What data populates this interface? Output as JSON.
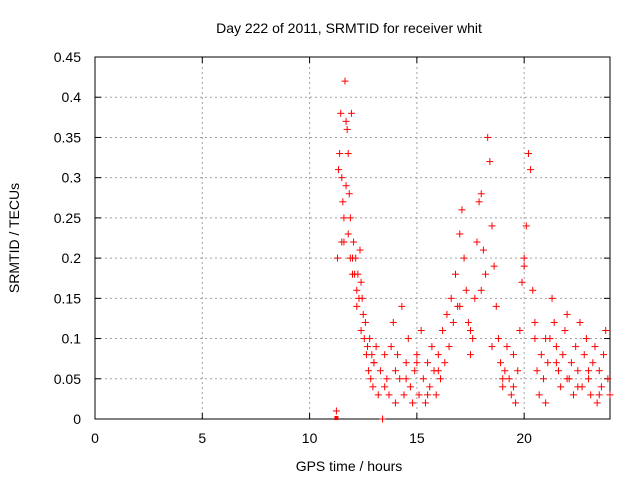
{
  "chart_data": {
    "type": "scatter",
    "title": "Day 222 of 2011, SRMTID for receiver whit",
    "xlabel": "GPS time / hours",
    "ylabel": "SRMTID / TECUs",
    "xlim": [
      0,
      24
    ],
    "ylim": [
      0,
      0.45
    ],
    "xticks": [
      0,
      5,
      10,
      15,
      20
    ],
    "xtick_labels": [
      "0",
      "5",
      "10",
      "15",
      "20"
    ],
    "yticks": [
      0,
      0.05,
      0.1,
      0.15,
      0.2,
      0.25,
      0.3,
      0.35,
      0.4,
      0.45
    ],
    "ytick_labels": [
      "0",
      "0.05",
      "0.1",
      "0.15",
      "0.2",
      "0.25",
      "0.3",
      "0.35",
      "0.4",
      "0.45"
    ],
    "grid": true,
    "marker": "+",
    "color": "#ff0000",
    "series": [
      {
        "name": "SRMTID",
        "x": [
          11.25,
          11.3,
          11.35,
          11.4,
          11.45,
          11.5,
          11.55,
          11.6,
          11.65,
          11.7,
          11.75,
          11.8,
          11.85,
          11.9,
          11.95,
          12.0,
          12.05,
          12.1,
          12.15,
          12.2,
          12.25,
          12.3,
          12.35,
          12.4,
          12.45,
          12.5,
          12.55,
          12.6,
          12.65,
          12.7,
          12.75,
          12.8,
          12.85,
          12.9,
          12.95,
          13.0,
          13.1,
          13.2,
          13.3,
          13.4,
          13.5,
          13.6,
          13.7,
          13.8,
          13.9,
          14.0,
          14.1,
          14.2,
          14.3,
          14.4,
          14.5,
          14.6,
          14.7,
          14.8,
          14.9,
          15.0,
          15.1,
          15.2,
          15.3,
          15.4,
          15.5,
          15.6,
          15.7,
          15.8,
          15.9,
          16.0,
          16.1,
          16.2,
          16.3,
          16.4,
          16.5,
          16.6,
          16.7,
          16.8,
          16.9,
          17.0,
          17.1,
          17.2,
          17.3,
          17.4,
          17.5,
          17.6,
          17.7,
          17.8,
          17.9,
          18.0,
          18.1,
          18.2,
          18.3,
          18.4,
          18.5,
          18.6,
          18.7,
          18.8,
          18.9,
          19.0,
          19.1,
          19.2,
          19.3,
          19.4,
          19.5,
          19.6,
          19.7,
          19.8,
          19.9,
          20.0,
          20.1,
          20.2,
          20.3,
          20.4,
          20.5,
          20.6,
          20.7,
          20.8,
          20.9,
          21.0,
          21.1,
          21.2,
          21.3,
          21.4,
          21.5,
          21.6,
          21.7,
          21.8,
          21.9,
          22.0,
          22.1,
          22.2,
          22.3,
          22.4,
          22.5,
          22.6,
          22.7,
          22.8,
          22.9,
          23.0,
          23.1,
          23.2,
          23.3,
          23.4,
          23.5,
          23.6,
          23.7,
          23.8,
          23.9,
          24.0,
          11.5,
          11.6,
          11.7,
          11.8,
          11.9,
          12.0,
          12.2,
          12.4,
          13.0,
          13.5,
          14.0,
          14.5,
          15.0,
          15.5,
          16.0,
          17.0,
          17.5,
          18.0,
          18.5,
          19.0,
          19.5,
          20.0,
          20.5,
          21.0,
          21.5,
          22.0,
          22.5,
          23.0,
          23.5
        ],
        "y": [
          0.01,
          0.2,
          0.31,
          0.33,
          0.38,
          0.3,
          0.27,
          0.22,
          0.42,
          0.37,
          0.36,
          0.33,
          0.28,
          0.25,
          0.38,
          0.2,
          0.22,
          0.18,
          0.2,
          0.16,
          0.18,
          0.15,
          0.21,
          0.17,
          0.15,
          0.13,
          0.1,
          0.12,
          0.08,
          0.09,
          0.06,
          0.1,
          0.05,
          0.08,
          0.04,
          0.07,
          0.09,
          0.03,
          0.06,
          0.0,
          0.08,
          0.05,
          0.03,
          0.09,
          0.12,
          0.06,
          0.08,
          0.05,
          0.14,
          0.03,
          0.07,
          0.1,
          0.04,
          0.02,
          0.06,
          0.08,
          0.03,
          0.11,
          0.05,
          0.02,
          0.07,
          0.04,
          0.09,
          0.06,
          0.03,
          0.08,
          0.05,
          0.11,
          0.07,
          0.13,
          0.09,
          0.15,
          0.12,
          0.18,
          0.14,
          0.23,
          0.26,
          0.2,
          0.16,
          0.12,
          0.08,
          0.1,
          0.15,
          0.22,
          0.27,
          0.28,
          0.21,
          0.18,
          0.35,
          0.32,
          0.24,
          0.19,
          0.14,
          0.1,
          0.07,
          0.04,
          0.06,
          0.09,
          0.05,
          0.03,
          0.08,
          0.02,
          0.06,
          0.11,
          0.17,
          0.2,
          0.24,
          0.33,
          0.31,
          0.16,
          0.1,
          0.06,
          0.03,
          0.08,
          0.05,
          0.02,
          0.07,
          0.1,
          0.15,
          0.12,
          0.09,
          0.06,
          0.04,
          0.08,
          0.11,
          0.13,
          0.05,
          0.07,
          0.03,
          0.09,
          0.06,
          0.12,
          0.04,
          0.08,
          0.1,
          0.05,
          0.03,
          0.07,
          0.09,
          0.02,
          0.06,
          0.04,
          0.08,
          0.11,
          0.05,
          0.03,
          0.22,
          0.25,
          0.29,
          0.23,
          0.2,
          0.18,
          0.14,
          0.11,
          0.07,
          0.04,
          0.02,
          0.05,
          0.07,
          0.03,
          0.06,
          0.14,
          0.11,
          0.16,
          0.09,
          0.05,
          0.04,
          0.19,
          0.12,
          0.1,
          0.07,
          0.05,
          0.04,
          0.06,
          0.03
        ],
        "markers": [
          {
            "x": 11.25,
            "y": 0.0,
            "symbol": "square"
          }
        ]
      }
    ]
  }
}
